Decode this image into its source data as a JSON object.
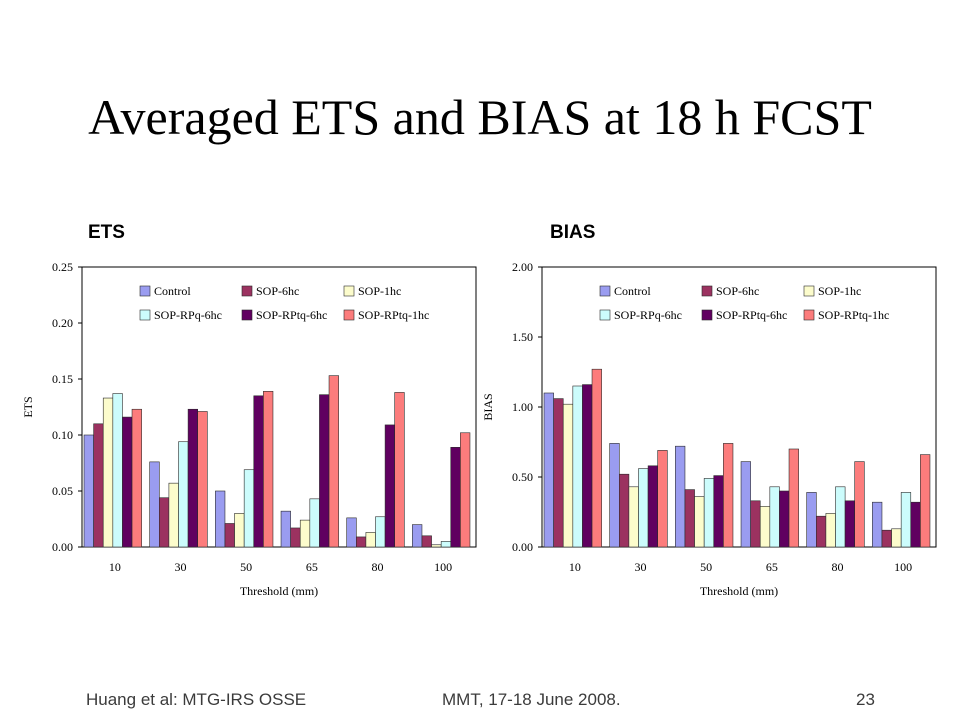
{
  "slide": {
    "title": "Averaged ETS and BIAS at 18 h FCST",
    "footer_left": "Huang et al: MTG-IRS OSSE",
    "footer_center": "MMT, 17-18 June 2008.",
    "page_number": "23"
  },
  "chart_data": [
    {
      "type": "bar",
      "panel_label": "ETS",
      "xlabel": "Threshold (mm)",
      "ylabel": "ETS",
      "ylim": [
        0,
        0.25
      ],
      "yticks": [
        0,
        0.05,
        0.1,
        0.15,
        0.2,
        0.25
      ],
      "ytick_labels": [
        "0.00",
        "0.05",
        "0.10",
        "0.15",
        "0.20",
        "0.25"
      ],
      "categories": [
        "10",
        "30",
        "50",
        "65",
        "80",
        "100"
      ],
      "legend_position": "top",
      "series": [
        {
          "name": "Control",
          "color": "#9a9cf0",
          "values": [
            0.1,
            0.076,
            0.05,
            0.032,
            0.026,
            0.02
          ]
        },
        {
          "name": "SOP-6hc",
          "color": "#9b3260",
          "values": [
            0.11,
            0.044,
            0.021,
            0.017,
            0.009,
            0.01
          ]
        },
        {
          "name": "SOP-1hc",
          "color": "#fcfccc",
          "values": [
            0.133,
            0.057,
            0.03,
            0.024,
            0.013,
            0.002
          ]
        },
        {
          "name": "SOP-RPq-6hc",
          "color": "#ccfcfc",
          "values": [
            0.137,
            0.094,
            0.069,
            0.043,
            0.027,
            0.005
          ]
        },
        {
          "name": "SOP-RPtq-6hc",
          "color": "#600060",
          "values": [
            0.116,
            0.123,
            0.135,
            0.136,
            0.109,
            0.089
          ]
        },
        {
          "name": "SOP-RPtq-1hc",
          "color": "#fc7c7c",
          "values": [
            0.123,
            0.121,
            0.139,
            0.153,
            0.138,
            0.102
          ]
        }
      ]
    },
    {
      "type": "bar",
      "panel_label": "BIAS",
      "xlabel": "Threshold (mm)",
      "ylabel": "BIAS",
      "ylim": [
        0,
        2.0
      ],
      "yticks": [
        0,
        0.5,
        1.0,
        1.5,
        2.0
      ],
      "ytick_labels": [
        "0.00",
        "0.50",
        "1.00",
        "1.50",
        "2.00"
      ],
      "categories": [
        "10",
        "30",
        "50",
        "65",
        "80",
        "100"
      ],
      "legend_position": "top",
      "series": [
        {
          "name": "Control",
          "color": "#9a9cf0",
          "values": [
            1.1,
            0.74,
            0.72,
            0.61,
            0.39,
            0.32
          ]
        },
        {
          "name": "SOP-6hc",
          "color": "#9b3260",
          "values": [
            1.06,
            0.52,
            0.41,
            0.33,
            0.22,
            0.12
          ]
        },
        {
          "name": "SOP-1hc",
          "color": "#fcfccc",
          "values": [
            1.02,
            0.43,
            0.36,
            0.29,
            0.24,
            0.13
          ]
        },
        {
          "name": "SOP-RPq-6hc",
          "color": "#ccfcfc",
          "values": [
            1.15,
            0.56,
            0.49,
            0.43,
            0.43,
            0.39
          ]
        },
        {
          "name": "SOP-RPtq-6hc",
          "color": "#600060",
          "values": [
            1.16,
            0.58,
            0.51,
            0.4,
            0.33,
            0.32
          ]
        },
        {
          "name": "SOP-RPtq-1hc",
          "color": "#fc7c7c",
          "values": [
            1.27,
            0.69,
            0.74,
            0.7,
            0.61,
            0.66
          ]
        }
      ]
    }
  ]
}
